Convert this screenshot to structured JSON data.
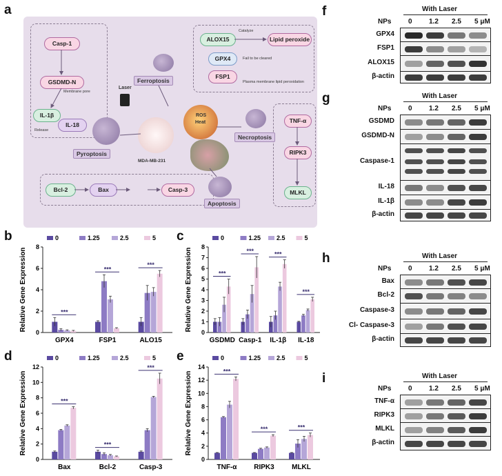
{
  "panel_letters": {
    "a": "a",
    "b": "b",
    "c": "c",
    "d": "d",
    "e": "e",
    "f": "f",
    "g": "g",
    "h": "h",
    "i": "i"
  },
  "schematic": {
    "nodes": {
      "casp1": "Casp-1",
      "gsdmdn": "GSDMD-N",
      "il1b": "IL-1β",
      "il18": "IL-18",
      "alox15": "ALOX15",
      "lipid": "Lipid peroxide",
      "gpx4": "GPX4",
      "fsp1": "FSP1",
      "tnfa": "TNF-α",
      "ripk3": "RIPK3",
      "mlkl": "MLKL",
      "bcl2": "Bcl-2",
      "bax": "Bax",
      "casp3": "Casp-3"
    },
    "tags": {
      "ferroptosis": "Ferroptosis",
      "pyroptosis": "Pyroptosis",
      "necroptosis": "Necroptosis",
      "apoptosis": "Apoptosis"
    },
    "small": {
      "membrane": "Membrane pore",
      "release": "Release",
      "catalyze": "Catalyze",
      "fail": "Fail to be cleared",
      "plasma": "Plasma membrane lipid peroxidation",
      "laser": "Laser",
      "cellline": "MDA-MB-231",
      "ros": "ROS",
      "heat": "Heat"
    }
  },
  "chart_data": [
    {
      "id": "b",
      "type": "bar",
      "categories": [
        "GPX4",
        "FSP1",
        "ALO15"
      ],
      "ylabel": "Relative Gene Expression",
      "ylim": [
        0,
        8
      ],
      "yticks": [
        0,
        2,
        4,
        6,
        8
      ],
      "series": [
        {
          "name": "0",
          "values": [
            1,
            1,
            1
          ],
          "err": [
            0.4,
            0.1,
            0.4
          ]
        },
        {
          "name": "1.25",
          "values": [
            0.25,
            4.8,
            3.7
          ],
          "err": [
            0.1,
            0.6,
            0.7
          ]
        },
        {
          "name": "2.5",
          "values": [
            0.2,
            3.1,
            3.8
          ],
          "err": [
            0.05,
            0.3,
            0.4
          ]
        },
        {
          "name": "5",
          "values": [
            0.15,
            0.4,
            5.5
          ],
          "err": [
            0.05,
            0.05,
            0.3
          ]
        }
      ],
      "sig": "***"
    },
    {
      "id": "c",
      "type": "bar",
      "categories": [
        "GSDMD",
        "Casp-1",
        "IL-1β",
        "IL-18"
      ],
      "ylabel": "Relative Gene Expression",
      "ylim": [
        0,
        8
      ],
      "yticks": [
        0,
        1,
        2,
        3,
        4,
        5,
        6,
        7,
        8
      ],
      "series": [
        {
          "name": "0",
          "values": [
            1,
            1,
            1,
            1
          ],
          "err": [
            0.3,
            0.3,
            0.5,
            0.05
          ]
        },
        {
          "name": "1.25",
          "values": [
            1,
            1.7,
            1.6,
            1.6
          ],
          "err": [
            0.4,
            0.4,
            0.4,
            0.1
          ]
        },
        {
          "name": "2.5",
          "values": [
            2.6,
            3.6,
            4.3,
            2.1
          ],
          "err": [
            0.7,
            0.8,
            0.4,
            0.1
          ]
        },
        {
          "name": "5",
          "values": [
            4.3,
            6.1,
            6.4,
            3.1
          ],
          "err": [
            0.7,
            1.0,
            0.4,
            0.2
          ]
        }
      ],
      "sig": "***"
    },
    {
      "id": "d",
      "type": "bar",
      "categories": [
        "Bax",
        "Bcl-2",
        "Casp-3"
      ],
      "ylabel": "Relative Gene Expression",
      "ylim": [
        0,
        12
      ],
      "yticks": [
        0,
        2,
        4,
        6,
        8,
        10,
        12
      ],
      "series": [
        {
          "name": "0",
          "values": [
            1,
            1,
            1
          ],
          "err": [
            0.1,
            0.2,
            0.1
          ]
        },
        {
          "name": "1.25",
          "values": [
            3.8,
            0.7,
            3.8
          ],
          "err": [
            0.1,
            0.15,
            0.2
          ]
        },
        {
          "name": "2.5",
          "values": [
            4.4,
            0.55,
            8.1
          ],
          "err": [
            0.1,
            0.1,
            0.1
          ]
        },
        {
          "name": "5",
          "values": [
            6.7,
            0.4,
            10.5
          ],
          "err": [
            0.15,
            0.05,
            0.7
          ]
        }
      ],
      "sig": "***"
    },
    {
      "id": "e",
      "type": "bar",
      "categories": [
        "TNF-α",
        "RIPK3",
        "MLKL"
      ],
      "ylabel": "Relative Gene Expression",
      "ylim": [
        0,
        14
      ],
      "yticks": [
        0,
        2,
        4,
        6,
        8,
        10,
        12,
        14
      ],
      "series": [
        {
          "name": "0",
          "values": [
            1,
            1,
            1
          ],
          "err": [
            0.05,
            0.05,
            0.05
          ]
        },
        {
          "name": "1.25",
          "values": [
            6.4,
            1.6,
            2.4
          ],
          "err": [
            0.1,
            0.1,
            0.6
          ]
        },
        {
          "name": "2.5",
          "values": [
            8.3,
            1.8,
            3.1
          ],
          "err": [
            0.5,
            0.1,
            0.4
          ]
        },
        {
          "name": "5",
          "values": [
            12.2,
            3.6,
            3.7
          ],
          "err": [
            0.3,
            0.15,
            0.3
          ]
        }
      ],
      "sig": "***"
    }
  ],
  "legend_colors": [
    "#5a4aa0",
    "#8d7bc4",
    "#b5a6d8",
    "#ecc9df"
  ],
  "blots": {
    "header": "With Laser",
    "nps": "NPs",
    "cols": [
      "0",
      "1.2",
      "2.5",
      "5 μM"
    ],
    "f": {
      "rows": [
        "GPX4",
        "FSP1",
        "ALOX15",
        "β-actin"
      ]
    },
    "g": {
      "rows": [
        "GSDMD",
        "GSDMD-N",
        "Caspase-1",
        "IL-18",
        "IL-1β",
        "β-actin"
      ]
    },
    "h": {
      "rows": [
        "Bax",
        "Bcl-2",
        "Caspase-3",
        "Cl- Caspase-3",
        "β-actin"
      ]
    },
    "i": {
      "rows": [
        "TNF-α",
        "RIPK3",
        "MLKL",
        "β-actin"
      ]
    }
  }
}
